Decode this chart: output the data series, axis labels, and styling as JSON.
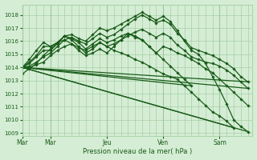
{
  "bg_color": "#d4edd4",
  "plot_bg_color": "#d4edd4",
  "grid_color": "#9dc89d",
  "line_color": "#1a5c1a",
  "ylim": [
    1008.8,
    1018.8
  ],
  "yticks": [
    1009,
    1010,
    1011,
    1012,
    1013,
    1014,
    1015,
    1016,
    1017,
    1018
  ],
  "day_labels": [
    "Mar",
    "Mar",
    "Jeu",
    "Ven",
    "Sam"
  ],
  "day_positions": [
    0,
    24,
    72,
    120,
    168
  ],
  "xlabel": "Pression niveau de la mer( hPa )",
  "xlim": [
    0,
    196
  ],
  "series_with_markers": [
    {
      "x": [
        0,
        6,
        12,
        18,
        24,
        30,
        36,
        42,
        48,
        54,
        60,
        66,
        72,
        78,
        84,
        90,
        96,
        102,
        108,
        114,
        120,
        126,
        132,
        138,
        144,
        150,
        156,
        162,
        168,
        174,
        180,
        186,
        192
      ],
      "y": [
        1014.0,
        1014.3,
        1014.8,
        1015.3,
        1015.3,
        1015.8,
        1016.4,
        1016.5,
        1016.2,
        1016.0,
        1016.5,
        1017.0,
        1016.8,
        1017.0,
        1017.3,
        1017.6,
        1017.9,
        1018.2,
        1017.9,
        1017.6,
        1017.9,
        1017.5,
        1016.8,
        1016.0,
        1015.3,
        1015.0,
        1014.3,
        1013.3,
        1012.3,
        1011.2,
        1010.0,
        1009.5,
        1009.1
      ]
    },
    {
      "x": [
        0,
        6,
        12,
        18,
        24,
        30,
        36,
        42,
        48,
        54,
        60,
        66,
        72,
        78,
        84,
        90,
        96,
        102,
        108,
        114,
        120,
        126,
        132,
        138,
        144,
        150,
        156,
        162,
        168,
        174,
        180,
        186,
        192
      ],
      "y": [
        1014.0,
        1014.1,
        1014.4,
        1014.8,
        1015.1,
        1015.6,
        1016.1,
        1016.3,
        1016.0,
        1015.8,
        1016.2,
        1016.6,
        1016.3,
        1016.5,
        1016.9,
        1017.3,
        1017.7,
        1018.0,
        1017.7,
        1017.4,
        1017.6,
        1017.3,
        1016.6,
        1016.1,
        1015.5,
        1015.3,
        1015.1,
        1014.9,
        1014.6,
        1014.3,
        1013.9,
        1013.3,
        1012.9
      ]
    },
    {
      "x": [
        0,
        6,
        12,
        18,
        24,
        30,
        36,
        42,
        48,
        54,
        60,
        66,
        72,
        78,
        84,
        90,
        96,
        102,
        108,
        114,
        120,
        126,
        132,
        138,
        144,
        150,
        156,
        162,
        168,
        174,
        180,
        186,
        192
      ],
      "y": [
        1014.0,
        1014.0,
        1014.2,
        1014.4,
        1014.9,
        1015.3,
        1015.6,
        1015.8,
        1015.5,
        1015.3,
        1015.6,
        1015.9,
        1015.6,
        1015.8,
        1016.1,
        1016.4,
        1016.7,
        1016.9,
        1016.6,
        1016.3,
        1016.6,
        1016.3,
        1015.7,
        1015.3,
        1014.8,
        1014.6,
        1014.4,
        1014.3,
        1014.1,
        1013.8,
        1013.4,
        1012.9,
        1012.4
      ]
    },
    {
      "x": [
        0,
        6,
        12,
        18,
        24,
        30,
        36,
        42,
        48,
        54,
        60,
        66,
        72,
        78,
        84,
        90,
        96,
        102,
        108,
        114,
        120,
        126,
        132,
        138,
        144,
        150,
        156,
        162,
        168,
        174,
        180
      ],
      "y": [
        1014.0,
        1014.4,
        1014.9,
        1015.6,
        1015.6,
        1015.9,
        1016.4,
        1016.1,
        1015.6,
        1015.1,
        1015.4,
        1015.9,
        1015.6,
        1015.3,
        1015.1,
        1014.9,
        1014.6,
        1014.4,
        1014.1,
        1013.8,
        1013.5,
        1013.3,
        1013.1,
        1012.6,
        1012.1,
        1011.6,
        1011.1,
        1010.6,
        1010.3,
        1009.9,
        1009.4
      ]
    },
    {
      "x": [
        0,
        6,
        12,
        18,
        24,
        30,
        36,
        42,
        48,
        54,
        60,
        66,
        72,
        78,
        84,
        90,
        96,
        102,
        108,
        114,
        120,
        126,
        132,
        138,
        144
      ],
      "y": [
        1013.5,
        1013.9,
        1014.3,
        1014.9,
        1015.4,
        1015.9,
        1016.4,
        1016.2,
        1015.9,
        1015.4,
        1015.8,
        1016.2,
        1015.9,
        1016.1,
        1016.4,
        1016.6,
        1016.3,
        1016.1,
        1015.6,
        1015.1,
        1014.6,
        1014.1,
        1013.6,
        1013.1,
        1012.6
      ]
    },
    {
      "x": [
        0,
        6,
        12,
        18,
        24,
        30,
        36,
        42,
        48,
        54,
        60,
        66,
        72,
        78,
        84,
        90,
        96,
        102,
        108,
        114,
        120,
        126,
        132,
        138,
        144,
        150,
        156,
        162,
        168,
        174,
        180,
        186,
        192
      ],
      "y": [
        1014.0,
        1014.6,
        1015.3,
        1015.9,
        1015.6,
        1015.9,
        1016.1,
        1015.8,
        1015.3,
        1014.9,
        1015.1,
        1015.4,
        1015.1,
        1015.6,
        1016.1,
        1016.6,
        1016.4,
        1016.1,
        1015.6,
        1015.1,
        1015.6,
        1015.4,
        1015.1,
        1014.9,
        1014.6,
        1014.3,
        1013.9,
        1013.6,
        1013.1,
        1012.6,
        1012.1,
        1011.6,
        1011.1
      ]
    }
  ],
  "series_straight": [
    {
      "x": [
        0,
        192
      ],
      "y": [
        1014.0,
        1009.1
      ]
    },
    {
      "x": [
        0,
        180
      ],
      "y": [
        1014.0,
        1009.4
      ]
    },
    {
      "x": [
        0,
        192
      ],
      "y": [
        1014.0,
        1012.9
      ]
    },
    {
      "x": [
        0,
        192
      ],
      "y": [
        1014.0,
        1012.4
      ]
    },
    {
      "x": [
        0,
        144
      ],
      "y": [
        1014.0,
        1012.6
      ]
    }
  ]
}
